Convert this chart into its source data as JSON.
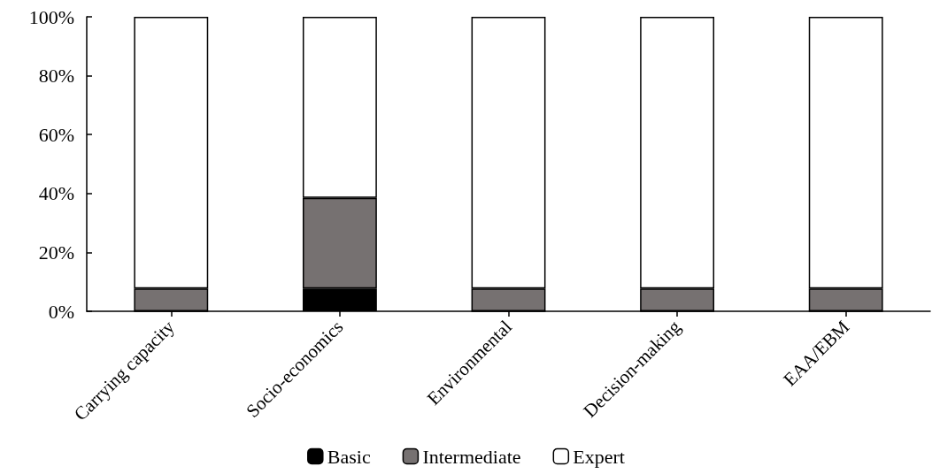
{
  "chart_data": {
    "type": "bar",
    "stacked": true,
    "categories": [
      "Carrying capacity",
      "Socio-economics",
      "Environmental",
      "Decision-making",
      "EAA/EBM"
    ],
    "series": [
      {
        "name": "Basic",
        "color": "#000000",
        "values": [
          0,
          7.7,
          0,
          0,
          0
        ]
      },
      {
        "name": "Intermediate",
        "color": "#767171",
        "values": [
          7.7,
          30.8,
          7.7,
          7.7,
          7.7
        ]
      },
      {
        "name": "Expert",
        "color": "#ffffff",
        "values": [
          92.3,
          61.5,
          92.3,
          92.3,
          92.3
        ]
      }
    ],
    "ylim": [
      0,
      100
    ],
    "yticks": [
      {
        "value": 0,
        "label": "0%"
      },
      {
        "value": 20,
        "label": "20%"
      },
      {
        "value": 40,
        "label": "40%"
      },
      {
        "value": 60,
        "label": "60%"
      },
      {
        "value": 80,
        "label": "80%"
      },
      {
        "value": 100,
        "label": "100%"
      }
    ],
    "grid": false,
    "legend": "bottom"
  }
}
